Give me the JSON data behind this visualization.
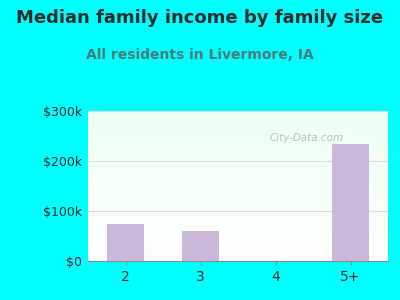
{
  "title": "Median family income by family size",
  "subtitle": "All residents in Livermore, IA",
  "categories": [
    "2",
    "3",
    "4",
    "5+"
  ],
  "values": [
    75000,
    60000,
    0,
    235000
  ],
  "bar_color": "#c9b8d8",
  "title_color": "#2d2d2d",
  "subtitle_color": "#4a7a7a",
  "bg_color": "#00FFFF",
  "plot_bg_top_left": "#d8f0d8",
  "plot_bg_bottom_right": "#f8fff8",
  "ylim": [
    0,
    300000
  ],
  "yticks": [
    0,
    100000,
    200000,
    300000
  ],
  "ytick_labels": [
    "$0",
    "$100k",
    "$200k",
    "$300k"
  ],
  "watermark": "City-Data.com",
  "title_fontsize": 13,
  "subtitle_fontsize": 10,
  "tick_fontsize": 9,
  "watermark_color": "#aaaaaa",
  "grid_color": "#dddddd",
  "axis_color": "#888888"
}
